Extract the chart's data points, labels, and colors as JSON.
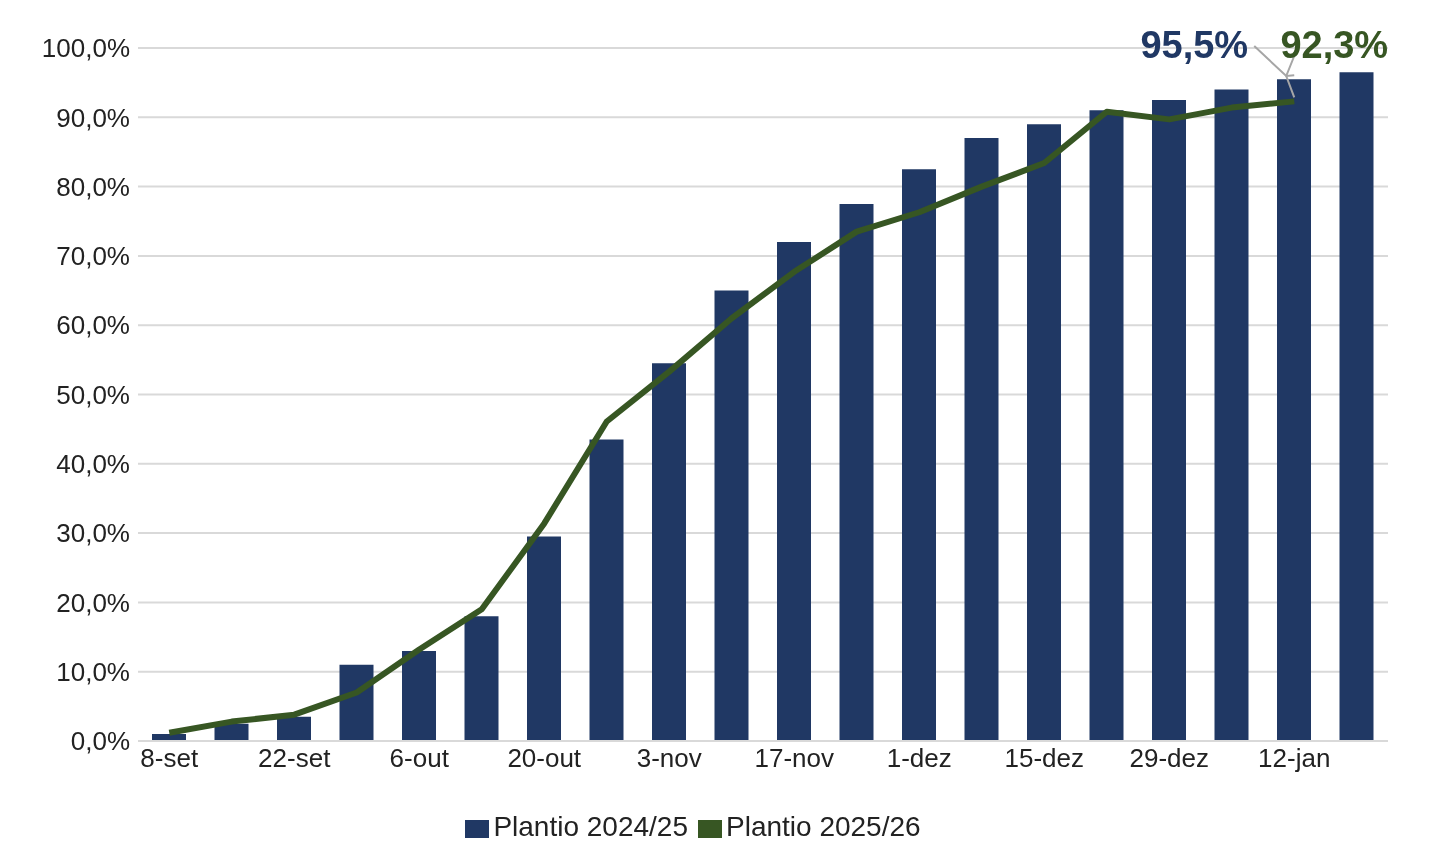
{
  "chart_data": {
    "type": "bar",
    "categories": [
      "8-set",
      null,
      "22-set",
      null,
      "6-out",
      null,
      "20-out",
      null,
      "3-nov",
      null,
      "17-nov",
      null,
      "1-dez",
      null,
      "15-dez",
      null,
      "29-dez",
      null,
      "12-jan",
      null
    ],
    "series": [
      {
        "name": "Plantio 2024/25",
        "color": "#203864",
        "values": [
          1.0,
          2.5,
          3.5,
          11,
          13,
          18,
          29.5,
          43.5,
          54.5,
          65,
          72,
          77.5,
          82.5,
          87,
          89,
          91,
          92.5,
          94,
          95.5,
          96.5
        ]
      },
      {
        "name": "Plantio 2025/26",
        "type": "line",
        "color": "#375623",
        "values": [
          1.2,
          2.8,
          3.8,
          7,
          13.2,
          19,
          31.4,
          46.1,
          53.3,
          61,
          67.7,
          73.5,
          76.3,
          80,
          83.4,
          90.8,
          89.7,
          91.4,
          92.3,
          null
        ]
      }
    ],
    "annotations": [
      {
        "text": "95,5%",
        "x": "12-jan",
        "y": 95.5
      },
      {
        "text": "92,3%",
        "x": "12-jan",
        "y": 92.3
      }
    ],
    "ylim": [
      0,
      100
    ],
    "yticks": [
      {
        "value": 0,
        "label": "0,0%"
      },
      {
        "value": 10,
        "label": "10,0%"
      },
      {
        "value": 20,
        "label": "20,0%"
      },
      {
        "value": 30,
        "label": "30,0%"
      },
      {
        "value": 40,
        "label": "40,0%"
      },
      {
        "value": 50,
        "label": "50,0%"
      },
      {
        "value": 60,
        "label": "60,0%"
      },
      {
        "value": 70,
        "label": "70,0%"
      },
      {
        "value": 80,
        "label": "80,0%"
      },
      {
        "value": 90,
        "label": "90,0%"
      },
      {
        "value": 100,
        "label": "100,0%"
      }
    ],
    "grid": "y",
    "legend": "bottom",
    "marker": "none",
    "line_style": "solid"
  }
}
